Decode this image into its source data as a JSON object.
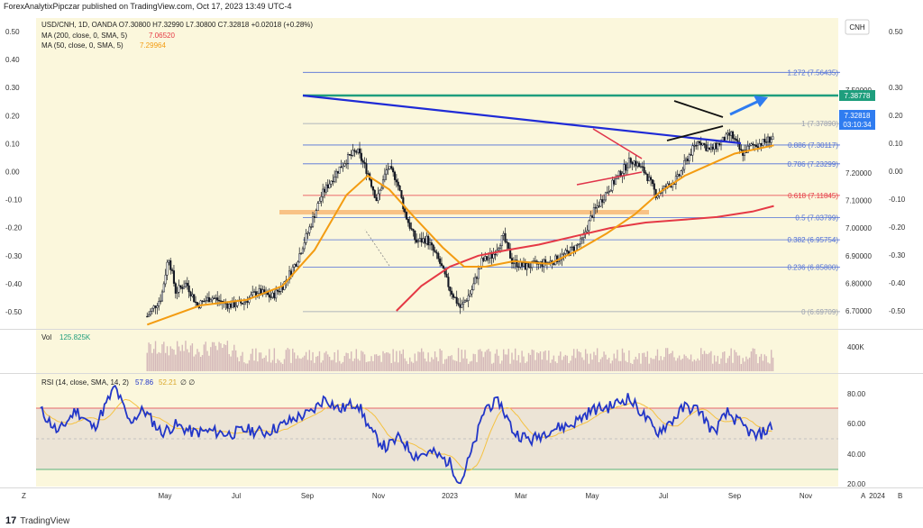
{
  "header": {
    "publisher_line": "ForexAnalytixPipczar published on TradingView.com, Oct 17, 2023 13:49 UTC-4"
  },
  "legend": {
    "symbol_line": "USD/CNH, 1D, OANDA  O7.30800  H7.32990  L7.30800  C7.32818  +0.02018 (+0.28%)",
    "ma200_label": "MA (200, close, 0, SMA, 5)",
    "ma200_value": "7.06520",
    "ma50_label": "MA (50, close, 0, SMA, 5)",
    "ma50_value": "7.29964",
    "currency_button": "CNH"
  },
  "volume_panel": {
    "label": "Vol",
    "value": "125.825K",
    "axis_label": "400K"
  },
  "rsi_panel": {
    "label": "RSI (14, close, SMA, 14, 2)",
    "rsi_value": "57.86",
    "sma_value": "52.21",
    "extra": "∅  ∅",
    "ticks": [
      "80.00",
      "60.00",
      "40.00",
      "20.00"
    ]
  },
  "price_tag": {
    "last_price": "7.32818",
    "countdown": "03:10:34",
    "top_line_price": "7.38778"
  },
  "colors": {
    "background": "#fbf7dc",
    "candle": "#131722",
    "ma200": "#e53945",
    "ma50": "#f39c12",
    "trendline": "#1f2bd6",
    "fib": "#4f6fd8",
    "top_line": "#1e9e7d",
    "rsi": "#2236c8",
    "rsi_ma": "#f5c242",
    "volume": "#d4b7b9",
    "arrow": "#2f7cf0"
  },
  "chart_data": {
    "type": "candlestick",
    "symbol": "USD/CNH",
    "timeframe": "1D",
    "left_axis_ticks": [
      "0.50",
      "0.40",
      "0.30",
      "0.20",
      "0.10",
      "0.00",
      "-0.10",
      "-0.20",
      "-0.30",
      "-0.40",
      "-0.50"
    ],
    "right_axis_ticks": [
      {
        "value": 7.5,
        "label": "7.50000"
      },
      {
        "value": 7.2,
        "label": "7.20000"
      },
      {
        "value": 7.1,
        "label": "7.10000"
      },
      {
        "value": 7.0,
        "label": "7.00000"
      },
      {
        "value": 6.9,
        "label": "6.90000"
      },
      {
        "value": 6.8,
        "label": "6.80000"
      },
      {
        "value": 6.7,
        "label": "6.70000"
      }
    ],
    "right_pct_ticks": [
      "0.50",
      "0.30",
      "0.20",
      "0.10",
      "0.00",
      "-0.10",
      "-0.20",
      "-0.30",
      "-0.40",
      "-0.50"
    ],
    "x_ticks": [
      {
        "label": "May",
        "month": 4
      },
      {
        "label": "Jul",
        "month": 6
      },
      {
        "label": "Sep",
        "month": 8
      },
      {
        "label": "Nov",
        "month": 10
      },
      {
        "label": "2023",
        "month": 12
      },
      {
        "label": "Mar",
        "month": 14
      },
      {
        "label": "May",
        "month": 16
      },
      {
        "label": "Jul",
        "month": 18
      },
      {
        "label": "Sep",
        "month": 20
      },
      {
        "label": "Nov",
        "month": 22
      },
      {
        "label": "2024",
        "month": 24
      }
    ],
    "fib_levels": [
      {
        "ratio": "1.272",
        "price": 7.56435,
        "label": "1.272 (7.56435)",
        "color": "#4f6fd8"
      },
      {
        "ratio": "1",
        "price": 7.3789,
        "label": "1 (7.37890)",
        "color": "#9aa0b0"
      },
      {
        "ratio": "0.886",
        "price": 7.30117,
        "label": "0.886 (7.30117)",
        "color": "#4f6fd8"
      },
      {
        "ratio": "0.786",
        "price": 7.23299,
        "label": "0.786 (7.23299)",
        "color": "#4f6fd8"
      },
      {
        "ratio": "0.618",
        "price": 7.11845,
        "label": "0.618 (7.11845)",
        "color": "#e53945"
      },
      {
        "ratio": "0.5",
        "price": 7.03799,
        "label": "0.5 (7.03799)",
        "color": "#4f6fd8"
      },
      {
        "ratio": "0.382",
        "price": 6.95754,
        "label": "0.382 (6.95754)",
        "color": "#4f6fd8"
      },
      {
        "ratio": "0.236",
        "price": 6.858,
        "label": "0.236 (6.85800)",
        "color": "#4f6fd8"
      },
      {
        "ratio": "0",
        "price": 6.69709,
        "label": "0 (6.69709)",
        "color": "#9aa0b0"
      }
    ],
    "price_path": [
      [
        3.5,
        6.68
      ],
      [
        3.9,
        6.75
      ],
      [
        4.1,
        6.9
      ],
      [
        4.3,
        6.77
      ],
      [
        4.6,
        6.8
      ],
      [
        4.9,
        6.72
      ],
      [
        5.3,
        6.75
      ],
      [
        5.8,
        6.72
      ],
      [
        6.2,
        6.73
      ],
      [
        6.6,
        6.77
      ],
      [
        7.0,
        6.75
      ],
      [
        7.3,
        6.79
      ],
      [
        7.7,
        6.88
      ],
      [
        8.0,
        6.98
      ],
      [
        8.4,
        7.12
      ],
      [
        8.8,
        7.2
      ],
      [
        9.1,
        7.25
      ],
      [
        9.4,
        7.28
      ],
      [
        9.7,
        7.2
      ],
      [
        9.95,
        7.1
      ],
      [
        10.25,
        7.22
      ],
      [
        10.5,
        7.18
      ],
      [
        10.75,
        7.05
      ],
      [
        11.05,
        6.95
      ],
      [
        11.35,
        6.96
      ],
      [
        11.7,
        6.88
      ],
      [
        12.0,
        6.78
      ],
      [
        12.3,
        6.71
      ],
      [
        12.6,
        6.77
      ],
      [
        12.9,
        6.88
      ],
      [
        13.2,
        6.9
      ],
      [
        13.5,
        6.97
      ],
      [
        13.75,
        6.88
      ],
      [
        14.1,
        6.86
      ],
      [
        14.5,
        6.87
      ],
      [
        14.9,
        6.88
      ],
      [
        15.3,
        6.91
      ],
      [
        15.7,
        6.95
      ],
      [
        16.0,
        7.05
      ],
      [
        16.4,
        7.13
      ],
      [
        16.8,
        7.2
      ],
      [
        17.1,
        7.25
      ],
      [
        17.5,
        7.2
      ],
      [
        17.8,
        7.12
      ],
      [
        18.1,
        7.15
      ],
      [
        18.4,
        7.18
      ],
      [
        18.7,
        7.26
      ],
      [
        19.0,
        7.32
      ],
      [
        19.3,
        7.28
      ],
      [
        19.6,
        7.31
      ],
      [
        19.9,
        7.34
      ],
      [
        20.2,
        7.27
      ],
      [
        20.5,
        7.3
      ],
      [
        20.8,
        7.31
      ],
      [
        21.1,
        7.33
      ]
    ],
    "ma50_path": [
      [
        3.5,
        6.65
      ],
      [
        5.0,
        6.72
      ],
      [
        6.3,
        6.74
      ],
      [
        7.3,
        6.79
      ],
      [
        8.2,
        6.92
      ],
      [
        9.1,
        7.12
      ],
      [
        9.7,
        7.19
      ],
      [
        10.3,
        7.14
      ],
      [
        11.0,
        7.04
      ],
      [
        11.8,
        6.93
      ],
      [
        12.4,
        6.86
      ],
      [
        13.0,
        6.86
      ],
      [
        13.8,
        6.88
      ],
      [
        14.8,
        6.87
      ],
      [
        15.6,
        6.92
      ],
      [
        16.4,
        6.98
      ],
      [
        17.2,
        7.05
      ],
      [
        17.9,
        7.13
      ],
      [
        18.6,
        7.19
      ],
      [
        19.3,
        7.23
      ],
      [
        20.0,
        7.27
      ],
      [
        21.1,
        7.3
      ]
    ],
    "ma200_path": [
      [
        10.5,
        6.7
      ],
      [
        11.2,
        6.79
      ],
      [
        12.0,
        6.86
      ],
      [
        12.8,
        6.9
      ],
      [
        13.6,
        6.92
      ],
      [
        14.5,
        6.94
      ],
      [
        15.5,
        6.97
      ],
      [
        16.5,
        7.0
      ],
      [
        17.5,
        7.02
      ],
      [
        18.5,
        7.03
      ],
      [
        19.5,
        7.04
      ],
      [
        20.5,
        7.06
      ],
      [
        21.1,
        7.08
      ]
    ],
    "rsi_path": [
      [
        0.5,
        70
      ],
      [
        1.0,
        55
      ],
      [
        1.5,
        70
      ],
      [
        2.0,
        58
      ],
      [
        2.6,
        85
      ],
      [
        3.0,
        62
      ],
      [
        3.4,
        70
      ],
      [
        3.9,
        55
      ],
      [
        4.3,
        60
      ],
      [
        4.8,
        55
      ],
      [
        5.3,
        56
      ],
      [
        5.8,
        54
      ],
      [
        6.3,
        57
      ],
      [
        6.8,
        55
      ],
      [
        7.3,
        60
      ],
      [
        7.7,
        65
      ],
      [
        8.1,
        68
      ],
      [
        8.5,
        78
      ],
      [
        8.9,
        70
      ],
      [
        9.4,
        75
      ],
      [
        9.8,
        55
      ],
      [
        10.2,
        45
      ],
      [
        10.6,
        52
      ],
      [
        11.0,
        40
      ],
      [
        11.5,
        42
      ],
      [
        12.0,
        35
      ],
      [
        12.3,
        22
      ],
      [
        12.7,
        48
      ],
      [
        13.0,
        72
      ],
      [
        13.4,
        75
      ],
      [
        13.8,
        55
      ],
      [
        14.3,
        50
      ],
      [
        14.8,
        57
      ],
      [
        15.4,
        60
      ],
      [
        16.0,
        70
      ],
      [
        16.5,
        72
      ],
      [
        17.0,
        78
      ],
      [
        17.4,
        68
      ],
      [
        17.8,
        55
      ],
      [
        18.2,
        62
      ],
      [
        18.6,
        72
      ],
      [
        19.0,
        70
      ],
      [
        19.4,
        55
      ],
      [
        19.8,
        68
      ],
      [
        20.2,
        60
      ],
      [
        20.6,
        52
      ],
      [
        21.1,
        60
      ]
    ],
    "annotations": [
      "7.38778 horizontal resistance",
      "0.618 / 1 fib retracement grid",
      "descending blue trendline",
      "symmetrical triangle near Sep-Oct",
      "arrow pointing to upside breakout"
    ],
    "grid": false,
    "legend_placement": "top-left"
  }
}
